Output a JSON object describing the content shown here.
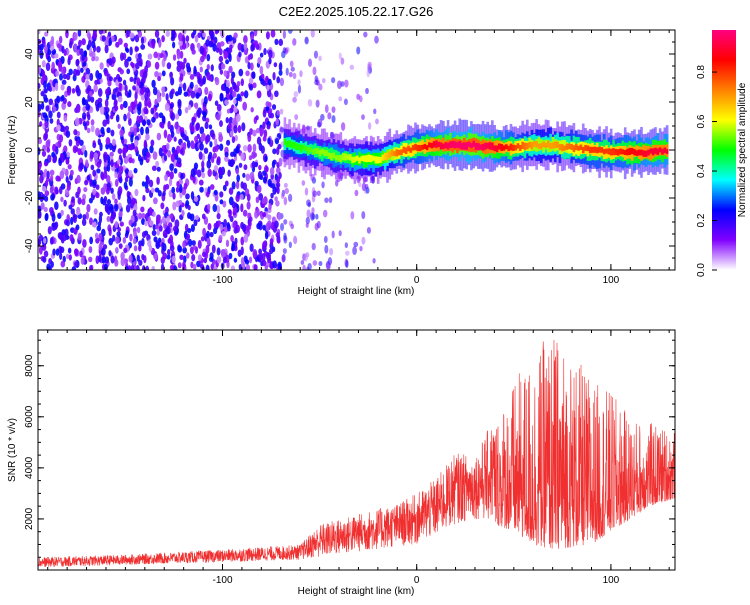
{
  "title": "C2E2.2025.105.22.17.G26",
  "chart_data": [
    {
      "type": "heatmap",
      "xlabel": "Height of straight line (km)",
      "ylabel": "Frequency (Hz)",
      "xlim": [
        -195,
        133
      ],
      "ylim": [
        -50,
        50
      ],
      "xticks": [
        -100,
        0,
        100
      ],
      "yticks": [
        -40,
        -20,
        0,
        20,
        40
      ],
      "colorbar": {
        "label": "Normalized spectral amplitude",
        "range": [
          0,
          0.97
        ],
        "ticks": [
          0.0,
          0.2,
          0.4,
          0.6,
          0.8
        ],
        "tick_labels": [
          "0.0",
          "0.2",
          "0.4",
          "0.6",
          "0.8"
        ],
        "colors": [
          "#ffffff",
          "#8000ff",
          "#0000ff",
          "#00ffff",
          "#00ff00",
          "#ffff00",
          "#ff8000",
          "#ff0000",
          "#ff0080"
        ]
      },
      "noise_region": {
        "x": [
          -195,
          -20
        ],
        "amplitude": [
          0.05,
          0.25
        ]
      },
      "signal_ridge": {
        "x": [
          -68,
          -60,
          -50,
          -40,
          -30,
          -20,
          -10,
          0,
          10,
          20,
          30,
          40,
          50,
          60,
          70,
          80,
          90,
          100,
          110,
          120,
          130
        ],
        "y": [
          3,
          1,
          -1,
          -3,
          -4,
          -4,
          -1,
          1,
          2,
          2,
          2,
          1,
          1,
          2,
          2,
          1,
          0,
          -1,
          -1,
          -1,
          0
        ],
        "amplitude": [
          0.5,
          0.5,
          0.55,
          0.55,
          0.6,
          0.6,
          0.75,
          0.8,
          0.9,
          0.95,
          0.95,
          0.9,
          0.8,
          0.7,
          0.7,
          0.75,
          0.8,
          0.8,
          0.85,
          0.9,
          0.9
        ]
      }
    },
    {
      "type": "line",
      "xlabel": "Height of straight line (km)",
      "ylabel": "SNR (10 * v/v)",
      "xlim": [
        -195,
        133
      ],
      "ylim": [
        0,
        9400
      ],
      "xticks": [
        -100,
        0,
        100
      ],
      "yticks": [
        2000,
        4000,
        6000,
        8000
      ],
      "color": "#f03030",
      "envelope": {
        "x": [
          -195,
          -150,
          -100,
          -80,
          -60,
          -50,
          -40,
          -30,
          -20,
          -10,
          0,
          10,
          20,
          30,
          40,
          50,
          60,
          70,
          80,
          90,
          100,
          110,
          120,
          133
        ],
        "low": [
          100,
          200,
          300,
          350,
          400,
          500,
          600,
          700,
          800,
          900,
          1000,
          1300,
          1800,
          2000,
          1800,
          1500,
          1000,
          800,
          900,
          1000,
          1500,
          2000,
          2500,
          2800
        ],
        "high": [
          500,
          600,
          800,
          900,
          1000,
          1800,
          2000,
          2200,
          2400,
          2600,
          3000,
          3600,
          4600,
          4500,
          6000,
          7400,
          8500,
          9400,
          8500,
          7500,
          7000,
          6000,
          5800,
          5500
        ]
      }
    }
  ]
}
